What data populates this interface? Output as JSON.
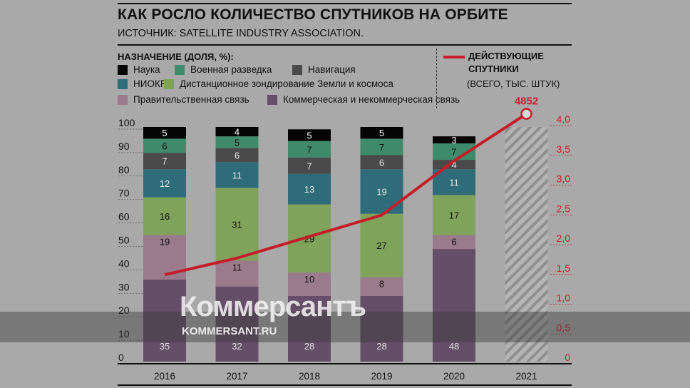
{
  "header": {
    "title": "КАК РОСЛО КОЛИЧЕСТВО СПУТНИКОВ НА ОРБИТЕ",
    "source": "ИСТОЧНИК: SATELLITE INDUSTRY ASSOCIATION."
  },
  "legend": {
    "heading": "НАЗНАЧЕНИЕ (ДОЛЯ, %):",
    "items": [
      {
        "label": "Наука",
        "color": "#050505"
      },
      {
        "label": "Военная разведка",
        "color": "#3f8a6b"
      },
      {
        "label": "Навигация",
        "color": "#4a4a4a"
      },
      {
        "label": "НИОКР",
        "color": "#2f6c7a"
      },
      {
        "label": "Дистанционное зондирование Земли и космоса",
        "color": "#80a35b"
      },
      {
        "label": "Правительственная связь",
        "color": "#9a7b8b"
      },
      {
        "label": "Коммерческая и некоммерческая связь",
        "color": "#654e67"
      }
    ],
    "line_title_1": "ДЕЙСТВУЮЩИЕ",
    "line_title_2": "СПУТНИКИ",
    "line_unit": "(ВСЕГО, ТЫС. ШТУК)",
    "line_color": "#c41e2a"
  },
  "chart_data": {
    "type": "bar",
    "stacked": true,
    "title": "КАК РОСЛО КОЛИЧЕСТВО СПУТНИКОВ НА ОРБИТЕ",
    "categories": [
      "2016",
      "2017",
      "2018",
      "2019",
      "2020",
      "2021"
    ],
    "ylim": [
      0,
      100
    ],
    "yticks": [
      "0",
      "10",
      "20",
      "30",
      "40",
      "50",
      "60",
      "70",
      "80",
      "90",
      "100"
    ],
    "series": [
      {
        "name": "Коммерческая и некоммерческая связь",
        "values": [
          35,
          32,
          28,
          28,
          48,
          null
        ],
        "label_color": "#ddd"
      },
      {
        "name": "Правительственная связь",
        "values": [
          19,
          11,
          10,
          8,
          6,
          null
        ],
        "label_color": "#111"
      },
      {
        "name": "Дистанционное зондирование Земли и космоса",
        "values": [
          16,
          31,
          29,
          27,
          17,
          null
        ],
        "label_color": "#111"
      },
      {
        "name": "НИОКР",
        "values": [
          12,
          11,
          13,
          19,
          11,
          null
        ],
        "label_color": "#e6e6e6"
      },
      {
        "name": "Навигация",
        "values": [
          7,
          6,
          7,
          6,
          4,
          null
        ],
        "label_color": "#e6e6e6"
      },
      {
        "name": "Военная разведка",
        "values": [
          6,
          5,
          7,
          7,
          7,
          null
        ],
        "label_color": "#111"
      },
      {
        "name": "Наука",
        "values": [
          5,
          4,
          5,
          5,
          3,
          null
        ],
        "label_color": "#fff"
      }
    ],
    "line": {
      "name": "Действующие спутники (всего, тыс. штук)",
      "values": [
        1.459,
        1.738,
        2.1,
        2.46,
        3.371,
        4.852
      ],
      "annotation": "4852",
      "y2lim": [
        0,
        4.0
      ],
      "y2ticks": [
        "0",
        "0,5",
        "1,0",
        "1,5",
        "2,0",
        "2,5",
        "3,0",
        "3,5",
        "4,0"
      ]
    },
    "forecast_category": "2021"
  },
  "watermark": {
    "logo": "Коммерсантъ",
    "url": "KOMMERSANT.RU"
  }
}
